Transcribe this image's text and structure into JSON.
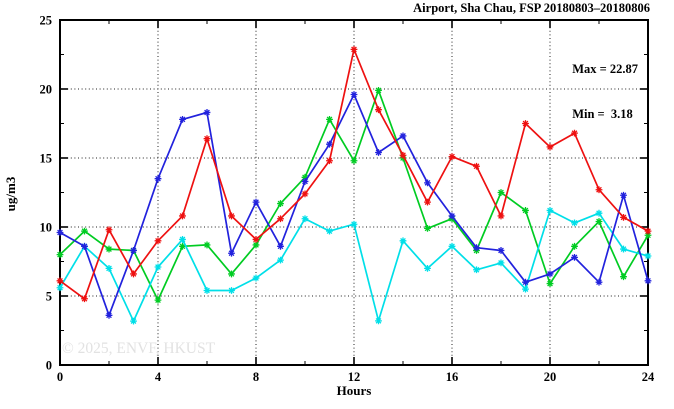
{
  "title": "Airport, Sha Chau, FSP 20180803–20180806",
  "stats": {
    "max_label": "Max = 22.87",
    "min_label": "Min =  3.18"
  },
  "watermark": "© 2025, ENVF, HKUST",
  "chart_data": {
    "type": "line",
    "title": "Airport, Sha Chau, FSP 20180803–20180806",
    "xlabel": "Hours",
    "ylabel": "ug/m3",
    "xlim": [
      0,
      24
    ],
    "ylim": [
      0,
      25
    ],
    "xticks": [
      0,
      4,
      8,
      12,
      16,
      20,
      24
    ],
    "yticks": [
      0,
      5,
      10,
      15,
      20,
      25
    ],
    "x_minor_step": 2,
    "y_minor_step": 2.5,
    "grid": true,
    "legend": "none",
    "marker": "asterisk",
    "max_value": 22.87,
    "min_value": 3.18,
    "x": [
      0,
      1,
      2,
      3,
      4,
      5,
      6,
      7,
      8,
      9,
      10,
      11,
      12,
      13,
      14,
      15,
      16,
      17,
      18,
      19,
      20,
      21,
      22,
      23,
      24
    ],
    "series": [
      {
        "name": "green-series",
        "color": "#00cc22",
        "values": [
          8.0,
          9.7,
          8.4,
          8.3,
          4.7,
          8.6,
          8.7,
          6.6,
          8.7,
          11.7,
          13.6,
          17.8,
          14.8,
          19.9,
          15.0,
          9.9,
          10.6,
          8.3,
          12.5,
          11.2,
          5.9,
          8.6,
          10.4,
          6.4,
          9.4
        ]
      },
      {
        "name": "cyan-series",
        "color": "#00dfe8",
        "values": [
          5.6,
          8.6,
          7.0,
          3.18,
          7.1,
          9.1,
          5.4,
          5.4,
          6.3,
          7.6,
          10.6,
          9.7,
          10.2,
          3.2,
          9.0,
          7.0,
          8.6,
          6.9,
          7.4,
          5.5,
          11.2,
          10.3,
          11.0,
          8.4,
          7.9
        ]
      },
      {
        "name": "blue-series",
        "color": "#2222dd",
        "values": [
          9.6,
          8.6,
          3.6,
          8.3,
          13.5,
          17.8,
          18.3,
          8.1,
          11.8,
          8.6,
          13.3,
          16.0,
          19.6,
          15.4,
          16.6,
          13.2,
          10.8,
          8.5,
          8.3,
          6.0,
          6.6,
          7.8,
          6.0,
          12.3,
          6.1
        ]
      },
      {
        "name": "red-series",
        "color": "#ee1111",
        "values": [
          6.1,
          4.8,
          9.8,
          6.6,
          9.0,
          10.8,
          16.4,
          10.8,
          9.1,
          10.6,
          12.4,
          14.8,
          22.87,
          18.5,
          15.2,
          11.8,
          15.1,
          14.4,
          10.8,
          17.5,
          15.8,
          16.8,
          12.7,
          10.7,
          9.7
        ]
      }
    ]
  }
}
